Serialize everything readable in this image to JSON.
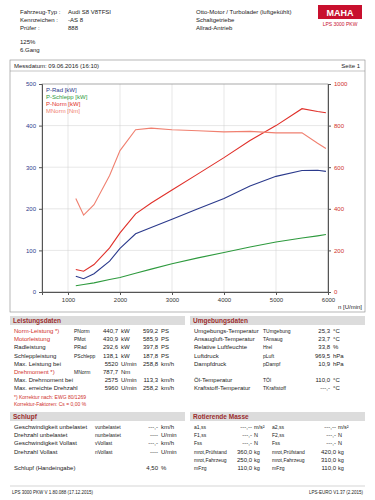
{
  "header": {
    "logo": "MAHA",
    "product": "LPS 3000 PKW",
    "fields": [
      [
        "Fahrzeug-Typ :",
        "Audi S8 V8TFSI"
      ],
      [
        "Kennzeichen :",
        "-AS 8"
      ],
      [
        "Prüfer :",
        "888"
      ]
    ],
    "extra": [
      "125%",
      "6.Gang"
    ],
    "engine": [
      "Otto-Motor / Turbolader (luftgekühlt)",
      "Schaltgetriebe",
      "Allrad-Antrieb"
    ],
    "date": "Messdatum: 09.06.2016 (16:10)",
    "page": "Seite 1"
  },
  "chart_data": {
    "type": "line",
    "x_label": "n [U/min]",
    "x": [
      1150,
      1300,
      1500,
      1800,
      2000,
      2300,
      2600,
      3000,
      3500,
      4000,
      4500,
      5000,
      5500,
      5800,
      5960
    ],
    "series": [
      {
        "name": "P-Rad [kW]",
        "color": "#2b3a8c",
        "values": [
          38,
          32,
          44,
          74,
          105,
          140,
          155,
          175,
          200,
          225,
          255,
          278,
          292,
          292.6,
          290
        ]
      },
      {
        "name": "P-Schlepp [kW]",
        "color": "#2e9a3e",
        "values": [
          15,
          18,
          22,
          30,
          35,
          45,
          55,
          68,
          82,
          95,
          108,
          120,
          130,
          135,
          138.1
        ]
      },
      {
        "name": "P-Norm [kW]",
        "color": "#e0302a",
        "values": [
          54,
          50,
          66,
          106,
          142,
          188,
          214,
          245,
          284,
          323,
          364,
          400,
          440.7,
          434,
          431
        ]
      },
      {
        "name": "MNorm [Nm]",
        "color": "#f08070",
        "axis": "y2",
        "values": [
          450,
          370,
          420,
          560,
          680,
          780,
          787.7,
          780,
          775,
          770,
          772,
          765,
          765,
          715,
          690
        ]
      }
    ],
    "xlim": [
      500,
      6000
    ],
    "xticks": [
      1000,
      2000,
      3000,
      4000,
      5000,
      6000
    ],
    "ylim": [
      0,
      500
    ],
    "yticks": [
      0,
      100,
      200,
      300,
      400,
      500
    ],
    "y2lim": [
      0,
      1000
    ],
    "y2ticks": [
      0,
      200,
      400,
      600,
      800,
      1000
    ],
    "grid": true,
    "legend": "upper left"
  },
  "leistungsdaten": {
    "title": "Leistungsdaten",
    "rows": [
      [
        "Norm-Leistung *)",
        "PNorm",
        "440,7",
        "kW",
        "599,2",
        "PS"
      ],
      [
        "Motorleistung",
        "PMot",
        "430,9",
        "kW",
        "585,9",
        "PS"
      ],
      [
        "Radleistung",
        "PRad",
        "292,6",
        "kW",
        "397,8",
        "PS"
      ],
      [
        "Schleppleistung",
        "PSchlepp",
        "138,1",
        "kW",
        "187,8",
        "PS"
      ],
      [
        "Max. Leistung bei",
        null,
        "5520",
        "U/min",
        "258,8",
        "km/h"
      ],
      [
        "Drehmoment *)",
        "MNorm",
        "787,7",
        "Nm",
        null,
        null
      ],
      [
        "Max. Drehmoment bei",
        null,
        "2575",
        "U/min",
        "113,3",
        "km/h"
      ],
      [
        "Max. erreichte Drehzahl",
        null,
        "5960",
        "U/min",
        "258,2",
        "km/h"
      ]
    ],
    "notes": [
      "*) Korrektur nach: EWG 80/1269",
      "Korrektur-Faktoren: Cs = 0,00 %"
    ]
  },
  "umgebungsdaten": {
    "title": "Umgebungsdaten",
    "rows": [
      [
        "Umgebungs-Temperatur",
        "TUmgebung",
        "25,3",
        "°C"
      ],
      [
        "Ansaugluft-Temperatur",
        "TAnsaug",
        "23,7",
        "°C"
      ],
      [
        "Relative Luftfeuchte",
        "Hrel",
        "33,8",
        "%"
      ],
      [
        "Luftdruck",
        "pLuft",
        "969,5",
        "hPa"
      ],
      [
        "Dampfdruck",
        "pDampf",
        "10,9",
        "hPa"
      ],
      [
        "Öl-Temperatur",
        "TÖl",
        "110,0",
        "°C"
      ],
      [
        "Kraftstoff-Temperatur",
        "TKraftstoff",
        "---,-",
        "°C"
      ]
    ]
  },
  "schlupf": {
    "title": "Schlupf",
    "rows": [
      [
        "Geschwindigkeit unbelastet",
        "vunbelastet",
        "---,-",
        "km/h"
      ],
      [
        "Drehzahl unbelastet",
        "nunbelastet",
        "----",
        "U/min"
      ],
      [
        "Geschwindigkeit Vollast",
        "vVollast",
        "---,-",
        "km/h"
      ],
      [
        "Drehzahl Vollast",
        "nVollast",
        "----",
        "U/min"
      ],
      [
        "Schlupf (Handeingabe)",
        null,
        "4,50",
        "%"
      ]
    ]
  },
  "rotierende_masse": {
    "title": "Rotierende Masse",
    "rows": [
      [
        "a1,ss",
        "---,--",
        "m/s²",
        "a2,ss",
        "---,--",
        "m/s²"
      ],
      [
        "F1,ss",
        "---,-",
        "N",
        "F2,ss",
        "---,-",
        "N"
      ],
      [
        "Fss",
        "---,-",
        "N",
        "Fss",
        "---,-",
        "N"
      ],
      [
        "mrot,Prüfstand",
        "360,0",
        "kg",
        "mrot,Prüfstand",
        "420,0",
        "kg"
      ],
      [
        "mrot,Fahrzeug",
        "250,0",
        "kg",
        "mrot,Fahrzeug",
        "310,0",
        "kg"
      ],
      [
        "mFzg",
        "110,0",
        "kg",
        "mFzg",
        "110,0",
        "kg"
      ]
    ]
  },
  "footer": [
    "LPS 3000 PKW V 1.80.088 (17.12.2015)",
    "LPS-EURO V1.37 (2.2015)"
  ]
}
